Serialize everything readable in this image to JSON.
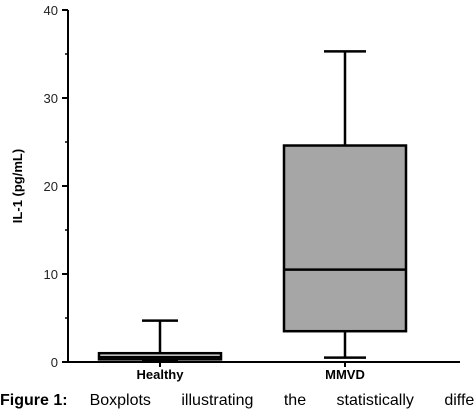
{
  "chart_data": {
    "type": "box",
    "ylabel": "IL-1 (pg/mL)",
    "xlabel": "",
    "ylim": [
      0,
      40
    ],
    "yticks": [
      0,
      10,
      20,
      30,
      40
    ],
    "categories": [
      "Healthy",
      "MMVD"
    ],
    "boxes": [
      {
        "category": "Healthy",
        "min": 0.2,
        "q1": 0.3,
        "median": 0.55,
        "q3": 1.0,
        "max": 4.7,
        "fill": "#d9d9d9"
      },
      {
        "category": "MMVD",
        "min": 0.5,
        "q1": 3.5,
        "median": 10.5,
        "q3": 24.6,
        "max": 35.3,
        "fill": "#a6a6a6"
      }
    ]
  },
  "caption": {
    "label": "Figure 1:",
    "text": "Boxplots illustrating the statistically differe"
  }
}
